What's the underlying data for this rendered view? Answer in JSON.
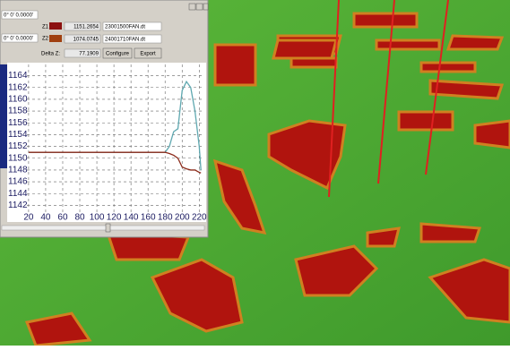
{
  "window": {
    "coord1": "0° 0' 0.0000'",
    "coord2": "0° 0' 0.0000'",
    "z1_label": "Z1",
    "z1_value": "1151.2654",
    "z1_file": "23001500FAN.dt",
    "z2_label": "Z2",
    "z2_value": "1074.0745",
    "z2_file": "24001710FAN.dt",
    "delta_label": "Delta Z:",
    "delta_value": "77.1909",
    "buttons": [
      "Configure",
      "Export"
    ]
  },
  "chart_data": {
    "type": "line",
    "x": [
      20,
      40,
      60,
      80,
      100,
      120,
      140,
      160,
      180,
      185,
      190,
      195,
      200,
      205,
      210,
      215,
      220,
      222
    ],
    "series": [
      {
        "color": "#5fa8b0",
        "values": [
          1151,
          1151,
          1151,
          1151,
          1151,
          1151,
          1151,
          1151,
          1151,
          1152,
          1154.5,
          1155,
          1161.5,
          1163,
          1162,
          1158,
          1152,
          1148
        ]
      },
      {
        "color": "#8b2a1a",
        "values": [
          1151,
          1151,
          1151,
          1151,
          1151,
          1151,
          1151,
          1151,
          1151,
          1150.8,
          1150.5,
          1150,
          1148.5,
          1148.2,
          1148,
          1148,
          1147.6,
          1147.5
        ]
      }
    ],
    "xlim": [
      18,
      226
    ],
    "ylim": [
      1141,
      1165
    ],
    "xticks": [
      20,
      40,
      60,
      80,
      100,
      120,
      140,
      160,
      180,
      200,
      220
    ],
    "yticks": [
      1142,
      1144,
      1146,
      1148,
      1150,
      1152,
      1154,
      1156,
      1158,
      1160,
      1162,
      1164
    ],
    "grid": true
  }
}
